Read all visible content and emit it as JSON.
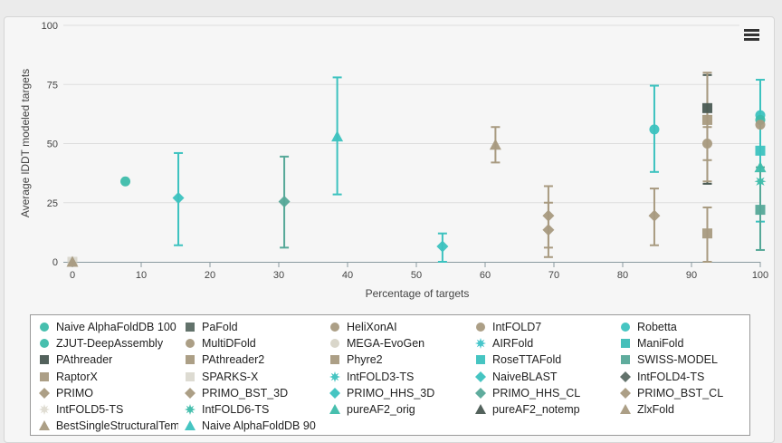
{
  "chart_data": {
    "type": "scatter",
    "title": "",
    "xlabel": "Percentage of targets",
    "ylabel": "Average lDDT modeled targets",
    "xlim": [
      0,
      100
    ],
    "ylim": [
      0,
      100
    ],
    "x_ticks": [
      "0",
      "10",
      "20",
      "30",
      "40",
      "50",
      "60",
      "70",
      "80",
      "90",
      "100"
    ],
    "y_ticks": [
      "0",
      "25",
      "50",
      "75",
      "100"
    ],
    "grid": "horizontal",
    "legend_position": "bottom",
    "series": [
      {
        "name": "Naive AlphaFoldDB 100",
        "marker": "circle",
        "color": "#3dbcaa",
        "points": [
          {
            "x": 7.7,
            "y": 34
          }
        ]
      },
      {
        "name": "PaFold",
        "marker": "pattern",
        "color": "#5a6a63",
        "points": []
      },
      {
        "name": "HeliXonAI",
        "marker": "circle",
        "color": "#a89a80",
        "points": []
      },
      {
        "name": "IntFOLD7",
        "marker": "circle",
        "color": "#a89a80",
        "points": []
      },
      {
        "name": "Robetta",
        "marker": "circle",
        "color": "#3cc2bf",
        "points": [
          {
            "x": 100,
            "y": 62
          }
        ]
      },
      {
        "name": "ZJUT-DeepAssembly",
        "marker": "circle",
        "color": "#3dbcaa",
        "points": [
          {
            "x": 100,
            "y": 60
          }
        ]
      },
      {
        "name": "MultiDFold",
        "marker": "circle",
        "color": "#a89a80",
        "points": [
          {
            "x": 92.3,
            "y": 50,
            "err": [
              43,
              57
            ]
          },
          {
            "x": 100,
            "y": 58
          }
        ]
      },
      {
        "name": "MEGA-EvoGen",
        "marker": "circle-faded",
        "color": "#ccc8b8",
        "points": []
      },
      {
        "name": "AIRFold",
        "marker": "star",
        "color": "#3dc3c8",
        "points": []
      },
      {
        "name": "ManiFold",
        "marker": "square",
        "color": "#3bbcb6",
        "points": []
      },
      {
        "name": "PAthreader",
        "marker": "pattern",
        "color": "#4a5a53",
        "points": [
          {
            "x": 92.3,
            "y": 65,
            "err": [
              33,
              79
            ]
          }
        ]
      },
      {
        "name": "PAthreader2",
        "marker": "square",
        "color": "#a89a80",
        "points": []
      },
      {
        "name": "Phyre2",
        "marker": "square",
        "color": "#a89a80",
        "points": [
          {
            "x": 92.3,
            "y": 12,
            "err": [
              0,
              23
            ]
          }
        ]
      },
      {
        "name": "RoseTTAFold",
        "marker": "square",
        "color": "#3cc2bf",
        "points": [
          {
            "x": 100,
            "y": 47,
            "err": [
              17,
              77
            ]
          }
        ]
      },
      {
        "name": "SWISS-MODEL",
        "marker": "square",
        "color": "#56a898",
        "points": [
          {
            "x": 100,
            "y": 22,
            "err": [
              5,
              40
            ]
          }
        ]
      },
      {
        "name": "RaptorX",
        "marker": "square",
        "color": "#a89a80",
        "points": [
          {
            "x": 92.3,
            "y": 60,
            "err": [
              34,
              80
            ]
          }
        ]
      },
      {
        "name": "SPARKS-X",
        "marker": "square-faded",
        "color": "#cfccbf",
        "points": [
          {
            "x": 0,
            "y": 0
          }
        ]
      },
      {
        "name": "IntFOLD3-TS",
        "marker": "star",
        "color": "#3cc2bf",
        "points": []
      },
      {
        "name": "NaiveBLAST",
        "marker": "diamond",
        "color": "#3cc2bf",
        "points": [
          {
            "x": 53.8,
            "y": 6.5,
            "err": [
              0,
              12
            ]
          }
        ]
      },
      {
        "name": "IntFOLD4-TS",
        "marker": "diamond-dark",
        "color": "#5a6a63",
        "points": []
      },
      {
        "name": "PRIMO",
        "marker": "diamond",
        "color": "#a89a80",
        "points": [
          {
            "x": 69.2,
            "y": 19.5,
            "err": [
              6,
              32
            ]
          },
          {
            "x": 84.6,
            "y": 19.5,
            "err": [
              7,
              31
            ]
          }
        ]
      },
      {
        "name": "PRIMO_BST_3D",
        "marker": "diamond",
        "color": "#a89a80",
        "points": [
          {
            "x": 69.2,
            "y": 13.5,
            "err": [
              2,
              25
            ]
          }
        ]
      },
      {
        "name": "PRIMO_HHS_3D",
        "marker": "diamond",
        "color": "#3cc2bf",
        "points": [
          {
            "x": 15.4,
            "y": 27,
            "err": [
              7,
              46
            ]
          }
        ]
      },
      {
        "name": "PRIMO_HHS_CL",
        "marker": "diamond",
        "color": "#56a898",
        "points": [
          {
            "x": 30.8,
            "y": 25.5,
            "err": [
              6,
              44.5
            ]
          }
        ]
      },
      {
        "name": "PRIMO_BST_CL",
        "marker": "diamond",
        "color": "#a89a80",
        "points": []
      },
      {
        "name": "IntFOLD5-TS",
        "marker": "star-faded",
        "color": "#d3cfc0",
        "points": []
      },
      {
        "name": "IntFOLD6-TS",
        "marker": "star",
        "color": "#3dbcaa",
        "points": [
          {
            "x": 100,
            "y": 34
          }
        ]
      },
      {
        "name": "pureAF2_orig",
        "marker": "triangle",
        "color": "#3dbcaa",
        "points": [
          {
            "x": 100,
            "y": 40
          }
        ]
      },
      {
        "name": "pureAF2_notemp",
        "marker": "triangle",
        "color": "#4a5a53",
        "points": []
      },
      {
        "name": "ZlxFold",
        "marker": "triangle",
        "color": "#a89a80",
        "points": [
          {
            "x": 0,
            "y": 0
          },
          {
            "x": 61.5,
            "y": 49.5,
            "err": [
              42,
              57
            ]
          }
        ]
      },
      {
        "name": "BestSingleStructuralTem",
        "marker": "triangle",
        "color": "#a89a80",
        "points": []
      },
      {
        "name": "Naive AlphaFoldDB 90",
        "marker": "triangle",
        "color": "#3cc2bf",
        "points": [
          {
            "x": 38.5,
            "y": 53,
            "err": [
              28.5,
              78
            ]
          }
        ]
      }
    ],
    "extra_points": [
      {
        "x": 84.6,
        "y": 56,
        "err": [
          38,
          74.5
        ],
        "marker": "circle",
        "color": "#3cc2bf"
      }
    ]
  },
  "ui": {
    "menu_icon": "hamburger-menu-icon"
  }
}
